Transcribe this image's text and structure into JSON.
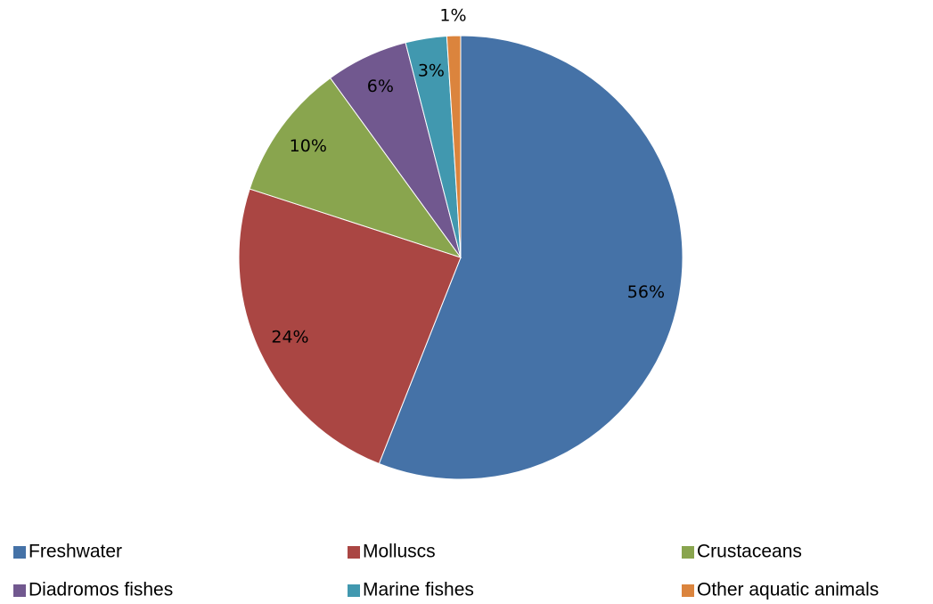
{
  "chart_data": {
    "type": "pie",
    "categories": [
      "Freshwater",
      "Molluscs",
      "Crustaceans",
      "Diadromos fishes",
      "Marine fishes",
      "Other aquatic animals"
    ],
    "values": [
      56,
      24,
      10,
      6,
      3,
      1
    ],
    "value_labels": [
      "56%",
      "24%",
      "10%",
      "6%",
      "3%",
      "1%"
    ],
    "colors": [
      "#4572a7",
      "#aa4643",
      "#89a54e",
      "#71588f",
      "#4198af",
      "#db843d"
    ],
    "legend": "bottom"
  }
}
